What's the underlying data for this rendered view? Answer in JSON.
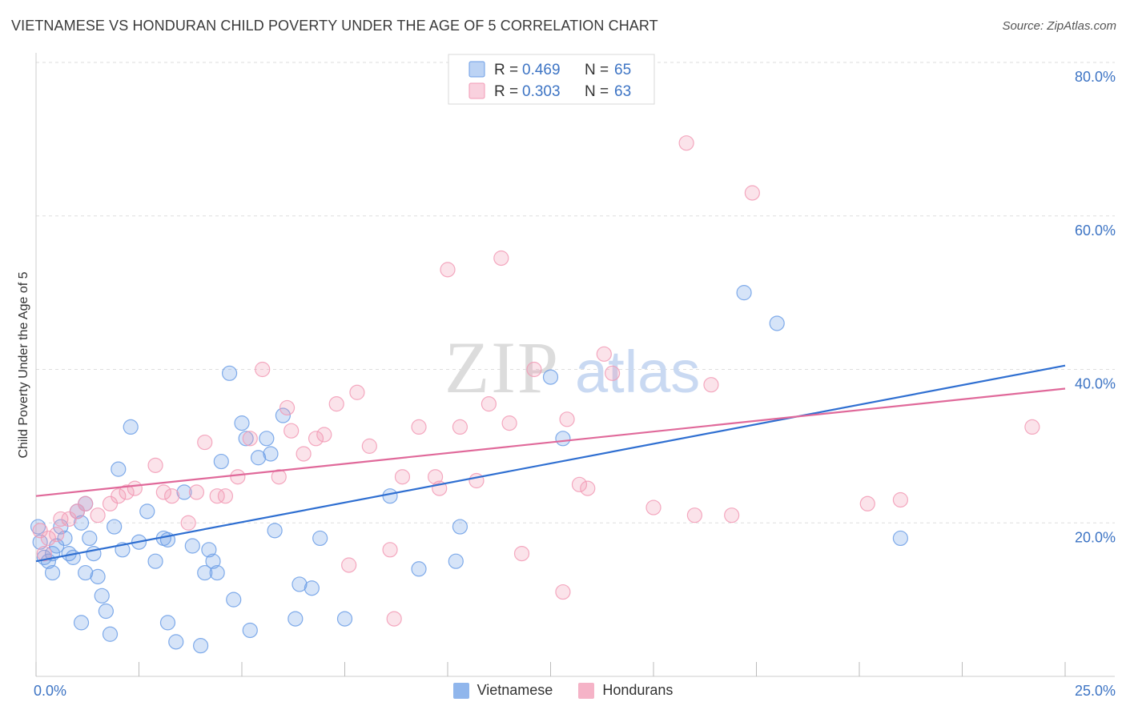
{
  "header": {
    "title": "VIETNAMESE VS HONDURAN CHILD POVERTY UNDER THE AGE OF 5 CORRELATION CHART",
    "source": "Source: ZipAtlas.com"
  },
  "watermark": {
    "zip": "ZIP",
    "atlas": "atlas"
  },
  "chart_data": {
    "type": "scatter",
    "title": "VIETNAMESE VS HONDURAN CHILD POVERTY UNDER THE AGE OF 5 CORRELATION CHART",
    "xlabel": "",
    "ylabel": "Child Poverty Under the Age of 5",
    "xlim": [
      0,
      25
    ],
    "ylim": [
      0,
      80
    ],
    "x_tick_labels": {
      "min": "0.0%",
      "max": "25.0%"
    },
    "y_ticks": [
      {
        "value": 20,
        "label": "20.0%"
      },
      {
        "value": 40,
        "label": "40.0%"
      },
      {
        "value": 60,
        "label": "60.0%"
      },
      {
        "value": 80,
        "label": "80.0%"
      }
    ],
    "grid": true,
    "legend_position": "top-center",
    "series": [
      {
        "name": "Vietnamese",
        "color": "#6b9ee6",
        "line_color": "#2f6fd1",
        "stats": {
          "r_label": "R =",
          "r": "0.469",
          "n_label": "N =",
          "n": "65"
        },
        "trend": [
          [
            0,
            15.0
          ],
          [
            25,
            40.5
          ]
        ],
        "points": [
          [
            0.05,
            19.5
          ],
          [
            0.1,
            17.5
          ],
          [
            0.2,
            15.5
          ],
          [
            0.3,
            15.0
          ],
          [
            0.4,
            13.5
          ],
          [
            0.5,
            17.0
          ],
          [
            0.6,
            19.5
          ],
          [
            0.7,
            18.0
          ],
          [
            0.8,
            16.0
          ],
          [
            0.9,
            15.5
          ],
          [
            1.0,
            21.5
          ],
          [
            1.1,
            20.0
          ],
          [
            1.2,
            22.5
          ],
          [
            1.3,
            18.0
          ],
          [
            1.4,
            16.0
          ],
          [
            1.2,
            13.5
          ],
          [
            1.5,
            13.0
          ],
          [
            1.6,
            10.5
          ],
          [
            1.7,
            8.5
          ],
          [
            1.8,
            5.5
          ],
          [
            1.1,
            7.0
          ],
          [
            1.9,
            19.5
          ],
          [
            2.1,
            16.5
          ],
          [
            2.3,
            32.5
          ],
          [
            2.5,
            17.5
          ],
          [
            2.7,
            21.5
          ],
          [
            2.9,
            15.0
          ],
          [
            3.1,
            18.0
          ],
          [
            3.2,
            7.0
          ],
          [
            3.4,
            4.5
          ],
          [
            3.6,
            24.0
          ],
          [
            3.8,
            17.0
          ],
          [
            4.0,
            4.0
          ],
          [
            4.1,
            13.5
          ],
          [
            4.2,
            16.5
          ],
          [
            4.3,
            15.0
          ],
          [
            4.4,
            13.5
          ],
          [
            4.5,
            28.0
          ],
          [
            4.7,
            39.5
          ],
          [
            4.8,
            10.0
          ],
          [
            5.1,
            31.0
          ],
          [
            5.0,
            33.0
          ],
          [
            5.2,
            6.0
          ],
          [
            5.4,
            28.5
          ],
          [
            5.6,
            31.0
          ],
          [
            5.7,
            29.0
          ],
          [
            5.8,
            19.0
          ],
          [
            6.0,
            34.0
          ],
          [
            6.3,
            7.5
          ],
          [
            6.4,
            12.0
          ],
          [
            6.7,
            11.5
          ],
          [
            6.9,
            18.0
          ],
          [
            7.5,
            7.5
          ],
          [
            2.0,
            27.0
          ],
          [
            3.2,
            17.8
          ],
          [
            0.4,
            16.0
          ],
          [
            8.6,
            23.5
          ],
          [
            9.3,
            14.0
          ],
          [
            10.2,
            15.0
          ],
          [
            10.3,
            19.5
          ],
          [
            12.5,
            39.0
          ],
          [
            12.8,
            31.0
          ],
          [
            17.2,
            50.0
          ],
          [
            18.0,
            46.0
          ],
          [
            21.0,
            18.0
          ]
        ]
      },
      {
        "name": "Hondurans",
        "color": "#f29ab5",
        "line_color": "#e0699a",
        "stats": {
          "r_label": "R =",
          "r": "0.303",
          "n_label": "N =",
          "n": "63"
        },
        "trend": [
          [
            0,
            23.5
          ],
          [
            25,
            37.5
          ]
        ],
        "points": [
          [
            0.1,
            19.0
          ],
          [
            0.2,
            16.0
          ],
          [
            0.3,
            18.0
          ],
          [
            0.5,
            18.5
          ],
          [
            0.6,
            20.5
          ],
          [
            0.8,
            20.5
          ],
          [
            1.0,
            21.5
          ],
          [
            1.2,
            22.5
          ],
          [
            1.5,
            21.0
          ],
          [
            1.8,
            22.5
          ],
          [
            2.0,
            23.5
          ],
          [
            2.2,
            24.0
          ],
          [
            2.4,
            24.5
          ],
          [
            2.9,
            27.5
          ],
          [
            3.1,
            24.0
          ],
          [
            3.3,
            23.5
          ],
          [
            3.7,
            20.0
          ],
          [
            3.9,
            24.0
          ],
          [
            4.1,
            30.5
          ],
          [
            4.4,
            23.5
          ],
          [
            4.6,
            23.5
          ],
          [
            4.9,
            26.0
          ],
          [
            5.2,
            31.0
          ],
          [
            5.5,
            40.0
          ],
          [
            5.9,
            26.0
          ],
          [
            6.1,
            35.0
          ],
          [
            6.2,
            32.0
          ],
          [
            6.5,
            29.0
          ],
          [
            6.8,
            31.0
          ],
          [
            7.0,
            31.5
          ],
          [
            7.3,
            35.5
          ],
          [
            7.6,
            14.5
          ],
          [
            7.8,
            37.0
          ],
          [
            8.1,
            30.0
          ],
          [
            8.6,
            16.5
          ],
          [
            8.7,
            7.5
          ],
          [
            8.9,
            26.0
          ],
          [
            9.3,
            32.5
          ],
          [
            9.7,
            26.0
          ],
          [
            9.8,
            24.5
          ],
          [
            10.0,
            53.0
          ],
          [
            10.3,
            32.5
          ],
          [
            10.7,
            25.5
          ],
          [
            11.0,
            35.5
          ],
          [
            11.3,
            54.5
          ],
          [
            11.5,
            33.0
          ],
          [
            11.8,
            16.0
          ],
          [
            12.1,
            40.0
          ],
          [
            12.8,
            11.0
          ],
          [
            12.9,
            33.5
          ],
          [
            13.2,
            25.0
          ],
          [
            13.4,
            24.5
          ],
          [
            13.8,
            42.0
          ],
          [
            14.0,
            39.5
          ],
          [
            15.0,
            22.0
          ],
          [
            15.8,
            69.5
          ],
          [
            16.0,
            21.0
          ],
          [
            16.4,
            38.0
          ],
          [
            16.9,
            21.0
          ],
          [
            17.4,
            63.0
          ],
          [
            20.2,
            22.5
          ],
          [
            21.0,
            23.0
          ],
          [
            24.2,
            32.5
          ]
        ]
      }
    ]
  }
}
